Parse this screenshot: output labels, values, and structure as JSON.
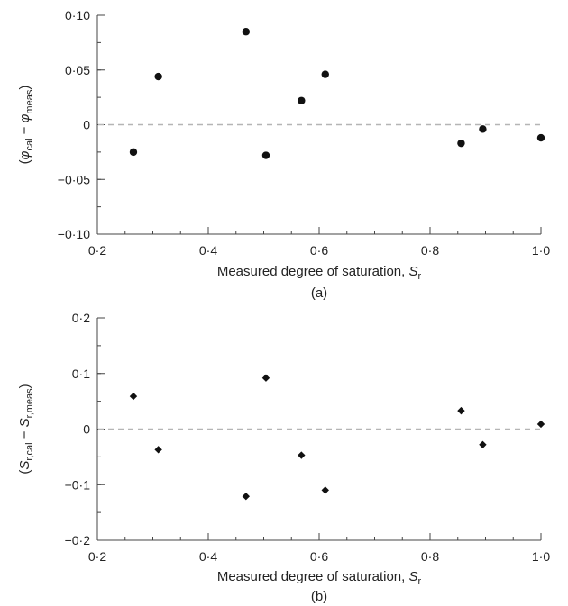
{
  "chart_data": [
    {
      "type": "scatter",
      "panel_label": "(a)",
      "xlabel": {
        "text": "Measured degree of saturation, ",
        "var": "S",
        "sub": "r"
      },
      "ylabel": {
        "open": "(",
        "var1": "φ",
        "sub1": "cal",
        "minus": " − ",
        "var2": "φ",
        "sub2": "meas",
        "close": ")"
      },
      "xlim": [
        0.2,
        1.0
      ],
      "ylim": [
        -0.1,
        0.1
      ],
      "xticks": [
        0.2,
        0.4,
        0.6,
        0.8,
        1.0
      ],
      "xtick_labels": [
        "0·2",
        "0·4",
        "0·6",
        "0·8",
        "1·0"
      ],
      "yticks": [
        -0.1,
        -0.05,
        0,
        0.05,
        0.1
      ],
      "ytick_labels": [
        "−0·10",
        "−0·05",
        "0",
        "0·05",
        "0·10"
      ],
      "reference_line": 0,
      "marker": "circle",
      "points": [
        {
          "x": 0.265,
          "y": -0.025
        },
        {
          "x": 0.31,
          "y": 0.044
        },
        {
          "x": 0.468,
          "y": 0.085
        },
        {
          "x": 0.504,
          "y": -0.028
        },
        {
          "x": 0.568,
          "y": 0.022
        },
        {
          "x": 0.611,
          "y": 0.046
        },
        {
          "x": 0.856,
          "y": -0.017
        },
        {
          "x": 0.895,
          "y": -0.004
        },
        {
          "x": 1.0,
          "y": -0.012
        }
      ]
    },
    {
      "type": "scatter",
      "panel_label": "(b)",
      "xlabel": {
        "text": "Measured degree of saturation, ",
        "var": "S",
        "sub": "r"
      },
      "ylabel": {
        "open": "(",
        "var1": "S",
        "sub1": "r,cal",
        "minus": " − ",
        "var2": "S",
        "sub2": "r,meas",
        "close": ")"
      },
      "xlim": [
        0.2,
        1.0
      ],
      "ylim": [
        -0.2,
        0.2
      ],
      "xticks": [
        0.2,
        0.4,
        0.6,
        0.8,
        1.0
      ],
      "xtick_labels": [
        "0·2",
        "0·4",
        "0·6",
        "0·8",
        "1·0"
      ],
      "yticks": [
        -0.2,
        -0.1,
        0,
        0.1,
        0.2
      ],
      "ytick_labels": [
        "−0·2",
        "−0·1",
        "0",
        "0·1",
        "0·2"
      ],
      "reference_line": 0,
      "marker": "diamond",
      "points": [
        {
          "x": 0.265,
          "y": 0.059
        },
        {
          "x": 0.31,
          "y": -0.037
        },
        {
          "x": 0.468,
          "y": -0.121
        },
        {
          "x": 0.504,
          "y": 0.092
        },
        {
          "x": 0.568,
          "y": -0.047
        },
        {
          "x": 0.611,
          "y": -0.11
        },
        {
          "x": 0.856,
          "y": 0.033
        },
        {
          "x": 0.895,
          "y": -0.028
        },
        {
          "x": 1.0,
          "y": 0.009
        }
      ]
    }
  ]
}
